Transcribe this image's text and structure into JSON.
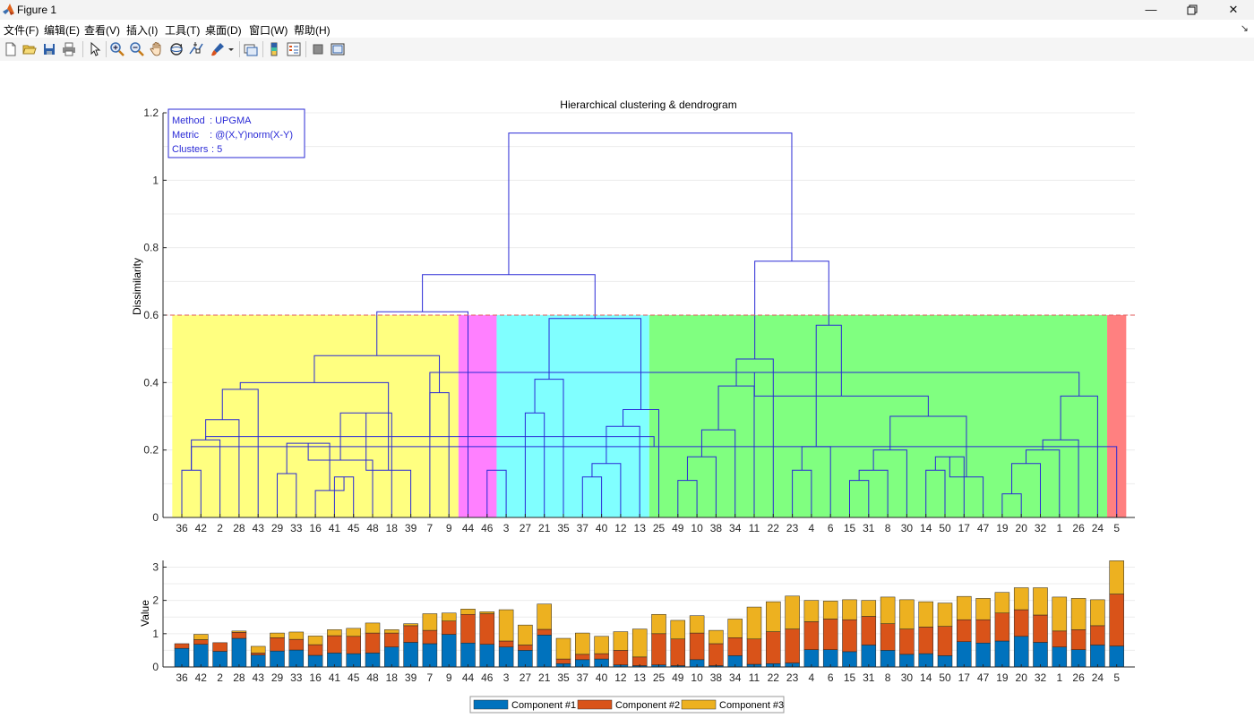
{
  "window": {
    "title": "Figure 1"
  },
  "menu": [
    "文件(F)",
    "编辑(E)",
    "查看(V)",
    "插入(I)",
    "工具(T)",
    "桌面(D)",
    "窗口(W)",
    "帮助(H)"
  ],
  "toolbar": {
    "icons": [
      "new-figure-icon",
      "open-file-icon",
      "save-icon",
      "print-icon",
      "pointer-icon",
      "zoom-in-icon",
      "zoom-out-icon",
      "pan-icon",
      "rotate-3d-icon",
      "data-cursor-icon",
      "brush-icon",
      "brush-dropdown-icon",
      "link-plot-icon",
      "insert-colorbar-icon",
      "insert-legend-icon",
      "hide-plot-tools-icon",
      "show-plot-tools-icon"
    ]
  },
  "colors": {
    "dendro_line": "#2a2ad6",
    "cut_line": "#e05a5a",
    "comp1": "#0072BD",
    "comp2": "#D95319",
    "comp3": "#EDB120"
  },
  "chart_data": [
    {
      "type": "dendrogram",
      "title": "Hierarchical clustering & dendrogram",
      "xlabel": "",
      "ylabel": "Dissimilarity",
      "ylim": [
        0,
        1.2
      ],
      "yticks": [
        "0",
        "0.2",
        "0.4",
        "0.6",
        "0.8",
        "1",
        "1.2"
      ],
      "grid": true,
      "cutoff": 0.6,
      "info_box": [
        {
          "key": "Method",
          "value": ": UPGMA"
        },
        {
          "key": "Metric",
          "value": ": @(X,Y)norm(X-Y)"
        },
        {
          "key": "Clusters",
          "value": ": 5"
        }
      ],
      "leaf_order": [
        "36",
        "42",
        "2",
        "28",
        "43",
        "29",
        "33",
        "16",
        "41",
        "45",
        "48",
        "18",
        "39",
        "7",
        "9",
        "44",
        "46",
        "3",
        "27",
        "21",
        "35",
        "37",
        "40",
        "12",
        "13",
        "25",
        "49",
        "10",
        "38",
        "34",
        "11",
        "22",
        "23",
        "4",
        "6",
        "15",
        "31",
        "8",
        "30",
        "14",
        "50",
        "17",
        "47",
        "19",
        "20",
        "32",
        "1",
        "26",
        "24",
        "5"
      ],
      "clusters": [
        {
          "color": "#ffff80",
          "first": 0,
          "last": 14
        },
        {
          "color": "#ff80ff",
          "first": 15,
          "last": 16
        },
        {
          "color": "#80ffff",
          "first": 17,
          "last": 24
        },
        {
          "color": "#80ff80",
          "first": 25,
          "last": 48
        },
        {
          "color": "#ff8080",
          "first": 49,
          "last": 49
        }
      ],
      "merges": [
        [
          0,
          1,
          0.14
        ],
        [
          2,
          50,
          0.23
        ],
        [
          3,
          51,
          0.29
        ],
        [
          4,
          52,
          0.38
        ],
        [
          5,
          6,
          0.13
        ],
        [
          8,
          9,
          0.12
        ],
        [
          7,
          55,
          0.08
        ],
        [
          54,
          56,
          0.22
        ],
        [
          57,
          10,
          0.17
        ],
        [
          58,
          11,
          0.31
        ],
        [
          59,
          12,
          0.14
        ],
        [
          53,
          60,
          0.4
        ],
        [
          13,
          14,
          0.37
        ],
        [
          61,
          62,
          0.48
        ],
        [
          63,
          15,
          0.61
        ],
        [
          16,
          17,
          0.14
        ],
        [
          18,
          19,
          0.31
        ],
        [
          20,
          66,
          0.41
        ],
        [
          21,
          22,
          0.12
        ],
        [
          23,
          68,
          0.16
        ],
        [
          69,
          24,
          0.27
        ],
        [
          70,
          25,
          0.32
        ],
        [
          67,
          71,
          0.59
        ],
        [
          64,
          72,
          0.72
        ],
        [
          26,
          27,
          0.11
        ],
        [
          74,
          28,
          0.18
        ],
        [
          75,
          29,
          0.26
        ],
        [
          30,
          76,
          0.39
        ],
        [
          77,
          31,
          0.47
        ],
        [
          32,
          33,
          0.14
        ],
        [
          34,
          79,
          0.21
        ],
        [
          35,
          36,
          0.11
        ],
        [
          81,
          37,
          0.14
        ],
        [
          82,
          38,
          0.2
        ],
        [
          39,
          40,
          0.14
        ],
        [
          84,
          41,
          0.18
        ],
        [
          85,
          42,
          0.12
        ],
        [
          83,
          86,
          0.3
        ],
        [
          43,
          44,
          0.07
        ],
        [
          88,
          45,
          0.16
        ],
        [
          89,
          46,
          0.2
        ],
        [
          90,
          47,
          0.23
        ],
        [
          91,
          48,
          0.36
        ],
        [
          49,
          50,
          0.21
        ],
        [
          93,
          51,
          0.24
        ],
        [
          92,
          94,
          0.43
        ],
        [
          87,
          95,
          0.36
        ],
        [
          80,
          96,
          0.57
        ],
        [
          78,
          97,
          0.76
        ],
        [
          73,
          98,
          1.14
        ]
      ]
    },
    {
      "type": "bar",
      "stacked": true,
      "ylabel": "Value",
      "ylim": [
        0,
        3.2
      ],
      "yticks": [
        "0",
        "1",
        "2",
        "3"
      ],
      "grid": true,
      "legend_position": "bottom",
      "categories": [
        "36",
        "42",
        "2",
        "28",
        "43",
        "29",
        "33",
        "16",
        "41",
        "45",
        "48",
        "18",
        "39",
        "7",
        "9",
        "44",
        "46",
        "3",
        "27",
        "21",
        "35",
        "37",
        "40",
        "12",
        "13",
        "25",
        "49",
        "10",
        "38",
        "34",
        "11",
        "22",
        "23",
        "4",
        "6",
        "15",
        "31",
        "8",
        "30",
        "14",
        "50",
        "17",
        "47",
        "19",
        "20",
        "32",
        "1",
        "26",
        "24",
        "5"
      ],
      "series": [
        {
          "name": "Component #1",
          "values": [
            0.56,
            0.68,
            0.47,
            0.86,
            0.36,
            0.48,
            0.51,
            0.35,
            0.42,
            0.4,
            0.42,
            0.6,
            0.74,
            0.7,
            0.98,
            0.72,
            0.68,
            0.6,
            0.5,
            0.96,
            0.1,
            0.22,
            0.24,
            0.06,
            0.04,
            0.06,
            0.04,
            0.22,
            0.04,
            0.34,
            0.08,
            0.1,
            0.12,
            0.52,
            0.52,
            0.46,
            0.66,
            0.5,
            0.38,
            0.4,
            0.34,
            0.76,
            0.72,
            0.78,
            0.92,
            0.74,
            0.6,
            0.52,
            0.66,
            0.63
          ]
        },
        {
          "name": "Component #2",
          "values": [
            0.14,
            0.14,
            0.26,
            0.18,
            0.06,
            0.4,
            0.32,
            0.32,
            0.52,
            0.52,
            0.6,
            0.42,
            0.5,
            0.4,
            0.4,
            0.86,
            0.92,
            0.18,
            0.16,
            0.17,
            0.14,
            0.16,
            0.16,
            0.44,
            0.26,
            0.94,
            0.8,
            0.8,
            0.66,
            0.54,
            0.76,
            0.96,
            1.02,
            0.84,
            0.92,
            0.96,
            0.86,
            0.8,
            0.76,
            0.8,
            0.88,
            0.66,
            0.7,
            0.84,
            0.8,
            0.82,
            0.48,
            0.6,
            0.58,
            1.56
          ]
        },
        {
          "name": "Component #3",
          "values": [
            0.0,
            0.16,
            0.0,
            0.04,
            0.2,
            0.14,
            0.22,
            0.26,
            0.18,
            0.24,
            0.3,
            0.1,
            0.06,
            0.5,
            0.24,
            0.16,
            0.06,
            0.94,
            0.6,
            0.76,
            0.62,
            0.64,
            0.52,
            0.56,
            0.84,
            0.58,
            0.56,
            0.52,
            0.4,
            0.56,
            0.96,
            0.9,
            0.99,
            0.64,
            0.54,
            0.6,
            0.48,
            0.8,
            0.88,
            0.76,
            0.7,
            0.7,
            0.64,
            0.62,
            0.66,
            0.82,
            1.02,
            0.94,
            0.78,
            1.0
          ]
        }
      ]
    }
  ]
}
